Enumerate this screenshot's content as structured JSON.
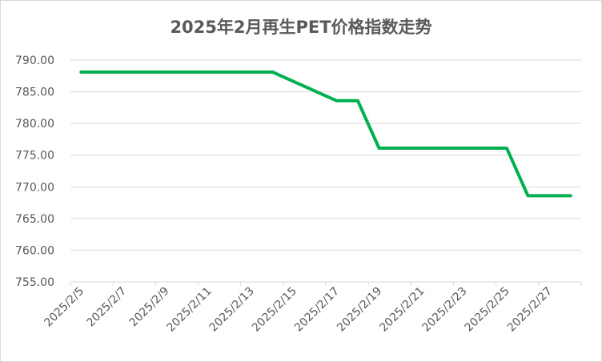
{
  "chart_data": {
    "type": "line",
    "title": "2025年2月再生PET价格指数走势",
    "xlabel": "",
    "ylabel": "",
    "ylim": [
      755,
      790
    ],
    "yticks": [
      "755.00",
      "760.00",
      "765.00",
      "770.00",
      "775.00",
      "780.00",
      "785.00",
      "790.00"
    ],
    "grid": true,
    "x": [
      "2025/2/5",
      "2025/2/6",
      "2025/2/7",
      "2025/2/8",
      "2025/2/9",
      "2025/2/10",
      "2025/2/11",
      "2025/2/12",
      "2025/2/13",
      "2025/2/14",
      "2025/2/15",
      "2025/2/16",
      "2025/2/17",
      "2025/2/18",
      "2025/2/19",
      "2025/2/20",
      "2025/2/21",
      "2025/2/22",
      "2025/2/23",
      "2025/2/24",
      "2025/2/25",
      "2025/2/26",
      "2025/2/27",
      "2025/2/28"
    ],
    "xtick_labels": [
      "2025/2/5",
      "2025/2/7",
      "2025/2/9",
      "2025/2/11",
      "2025/2/13",
      "2025/2/15",
      "2025/2/17",
      "2025/2/19",
      "2025/2/21",
      "2025/2/23",
      "2025/2/25",
      "2025/2/27"
    ],
    "series": [
      {
        "color": "#00b050",
        "values": [
          788.1,
          788.1,
          788.1,
          788.1,
          788.1,
          788.1,
          788.1,
          788.1,
          788.1,
          788.1,
          786.6,
          785.1,
          783.6,
          783.6,
          776.1,
          776.1,
          776.1,
          776.1,
          776.1,
          776.1,
          776.1,
          768.6,
          768.6,
          768.6
        ]
      }
    ]
  }
}
